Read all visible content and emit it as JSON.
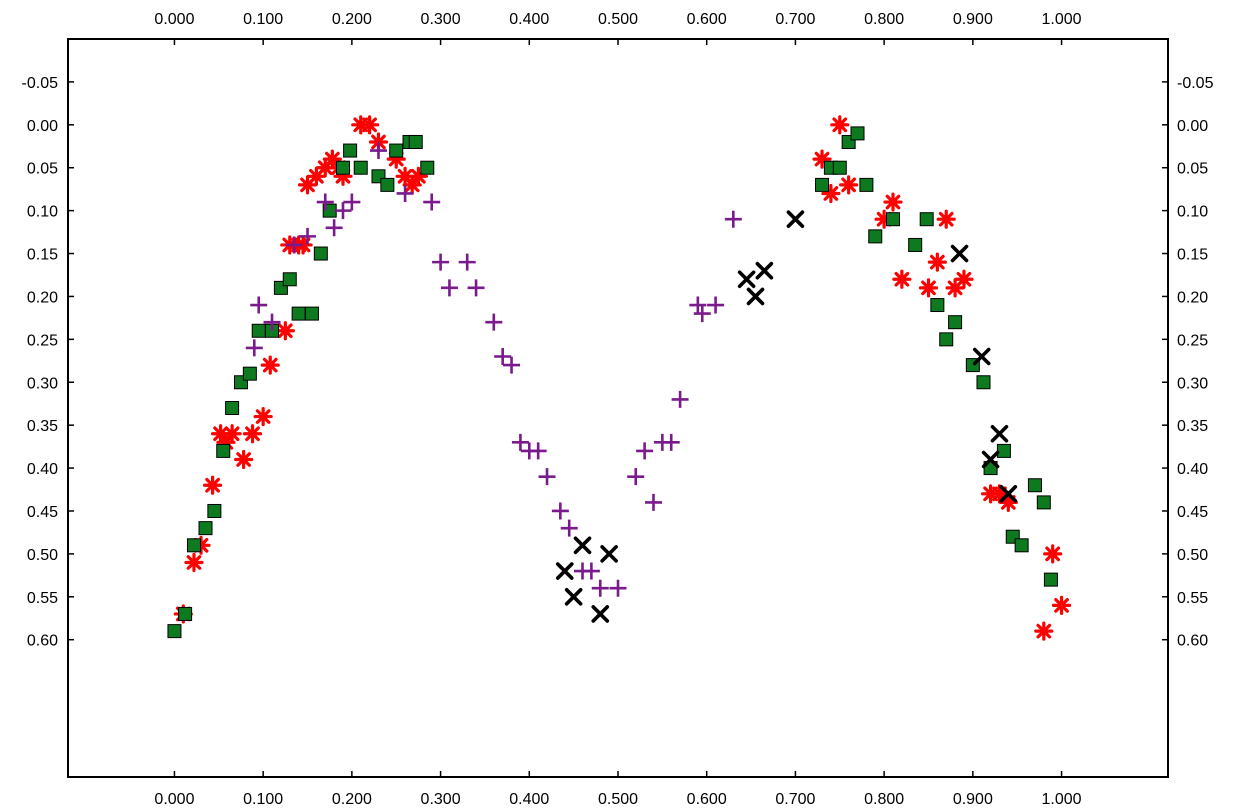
{
  "chart_data": {
    "type": "scatter",
    "title": "",
    "xlabel": "",
    "ylabel": "",
    "xlim": [
      -0.12,
      1.12
    ],
    "ylim": [
      -0.1,
      0.76
    ],
    "y_inverted": true,
    "grid": false,
    "legend": "none",
    "x_ticks": [
      0.0,
      0.1,
      0.2,
      0.3,
      0.4,
      0.5,
      0.6,
      0.7,
      0.8,
      0.9,
      1.0
    ],
    "x_tick_labels": [
      "0.000",
      "0.100",
      "0.200",
      "0.300",
      "0.400",
      "0.500",
      "0.600",
      "0.700",
      "0.800",
      "0.900",
      "1.000"
    ],
    "y_ticks": [
      -0.05,
      0.0,
      0.05,
      0.1,
      0.15,
      0.2,
      0.25,
      0.3,
      0.35,
      0.4,
      0.45,
      0.5,
      0.55,
      0.6
    ],
    "y_tick_labels": [
      "-0.05",
      "0.00",
      "0.05",
      "0.10",
      "0.15",
      "0.20",
      "0.25",
      "0.30",
      "0.35",
      "0.40",
      "0.45",
      "0.50",
      "0.55",
      "0.60"
    ],
    "series": [
      {
        "marker": "asterisk",
        "color": "#ff0000",
        "x": [
          0.01,
          0.022,
          0.03,
          0.043,
          0.052,
          0.058,
          0.065,
          0.078,
          0.088,
          0.1,
          0.108,
          0.125,
          0.13,
          0.14,
          0.145,
          0.15,
          0.16,
          0.17,
          0.178,
          0.185,
          0.19,
          0.21,
          0.22,
          0.23,
          0.25,
          0.26,
          0.268,
          0.275,
          0.73,
          0.74,
          0.75,
          0.76,
          0.8,
          0.81,
          0.82,
          0.85,
          0.86,
          0.87,
          0.88,
          0.89,
          0.92,
          0.93,
          0.94,
          0.98,
          0.99,
          1.0
        ],
        "y": [
          0.57,
          0.51,
          0.49,
          0.42,
          0.36,
          0.37,
          0.36,
          0.39,
          0.36,
          0.34,
          0.28,
          0.24,
          0.14,
          0.14,
          0.14,
          0.07,
          0.06,
          0.05,
          0.04,
          0.05,
          0.06,
          0.0,
          0.0,
          0.02,
          0.04,
          0.06,
          0.07,
          0.06,
          0.04,
          0.08,
          0.0,
          0.07,
          0.11,
          0.09,
          0.18,
          0.19,
          0.16,
          0.11,
          0.19,
          0.18,
          0.43,
          0.43,
          0.44,
          0.59,
          0.5,
          0.56
        ]
      },
      {
        "marker": "square",
        "color": "#0e7a1f",
        "x": [
          0.0,
          0.012,
          0.022,
          0.035,
          0.045,
          0.055,
          0.065,
          0.075,
          0.085,
          0.095,
          0.11,
          0.12,
          0.13,
          0.14,
          0.155,
          0.165,
          0.175,
          0.19,
          0.198,
          0.21,
          0.23,
          0.24,
          0.25,
          0.265,
          0.272,
          0.285,
          0.73,
          0.74,
          0.75,
          0.76,
          0.77,
          0.78,
          0.79,
          0.81,
          0.835,
          0.848,
          0.86,
          0.87,
          0.88,
          0.9,
          0.912,
          0.92,
          0.935,
          0.945,
          0.955,
          0.97,
          0.98,
          0.988
        ],
        "y": [
          0.59,
          0.57,
          0.49,
          0.47,
          0.45,
          0.38,
          0.33,
          0.3,
          0.29,
          0.24,
          0.24,
          0.19,
          0.18,
          0.22,
          0.22,
          0.15,
          0.1,
          0.05,
          0.03,
          0.05,
          0.06,
          0.07,
          0.03,
          0.02,
          0.02,
          0.05,
          0.07,
          0.05,
          0.05,
          0.02,
          0.01,
          0.07,
          0.13,
          0.11,
          0.14,
          0.11,
          0.21,
          0.25,
          0.23,
          0.28,
          0.3,
          0.4,
          0.38,
          0.48,
          0.49,
          0.42,
          0.44,
          0.53
        ]
      },
      {
        "marker": "plus",
        "color": "#7a1a8c",
        "x": [
          0.09,
          0.095,
          0.11,
          0.135,
          0.15,
          0.17,
          0.18,
          0.19,
          0.2,
          0.23,
          0.26,
          0.29,
          0.3,
          0.31,
          0.33,
          0.34,
          0.36,
          0.37,
          0.38,
          0.39,
          0.4,
          0.41,
          0.42,
          0.435,
          0.445,
          0.46,
          0.47,
          0.48,
          0.5,
          0.52,
          0.53,
          0.54,
          0.55,
          0.56,
          0.57,
          0.59,
          0.595,
          0.61,
          0.63
        ],
        "y": [
          0.26,
          0.21,
          0.23,
          0.14,
          0.13,
          0.09,
          0.12,
          0.1,
          0.09,
          0.03,
          0.08,
          0.09,
          0.16,
          0.19,
          0.16,
          0.19,
          0.23,
          0.27,
          0.28,
          0.37,
          0.38,
          0.38,
          0.41,
          0.45,
          0.47,
          0.52,
          0.52,
          0.54,
          0.54,
          0.41,
          0.38,
          0.44,
          0.37,
          0.37,
          0.32,
          0.21,
          0.22,
          0.21,
          0.11
        ]
      },
      {
        "marker": "x",
        "color": "#000000",
        "x": [
          0.44,
          0.45,
          0.46,
          0.48,
          0.49,
          0.645,
          0.655,
          0.665,
          0.7,
          0.885,
          0.91,
          0.92,
          0.93,
          0.94
        ],
        "y": [
          0.52,
          0.55,
          0.49,
          0.57,
          0.5,
          0.18,
          0.2,
          0.17,
          0.11,
          0.15,
          0.27,
          0.39,
          0.36,
          0.43
        ]
      }
    ]
  }
}
